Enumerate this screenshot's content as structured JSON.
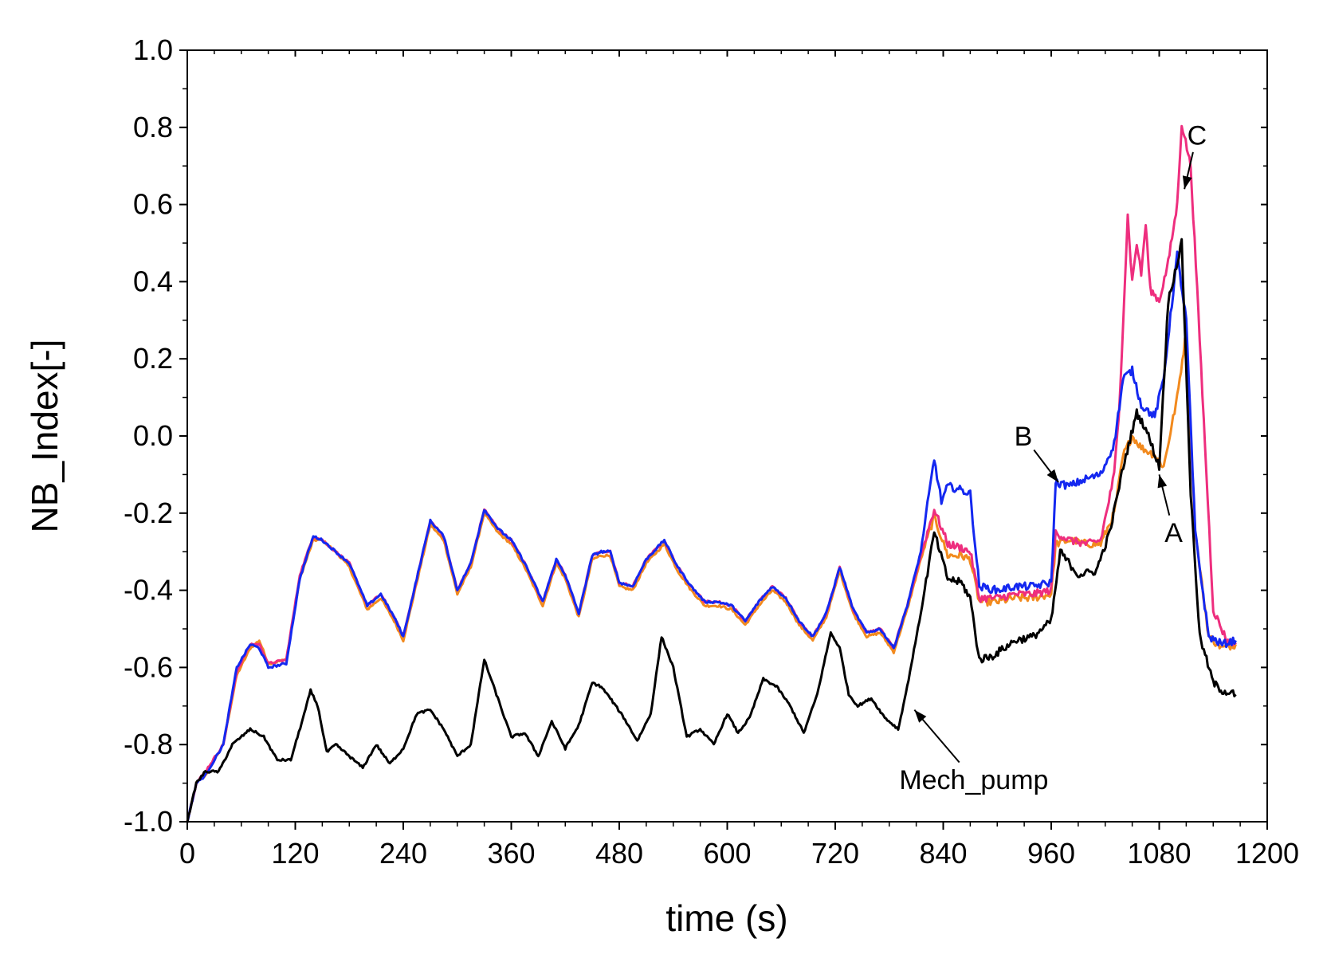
{
  "chart_data": {
    "type": "line",
    "title": "",
    "xlabel": "time (s)",
    "ylabel": "NB_Index[-]",
    "xlim": [
      0,
      1200
    ],
    "ylim": [
      -1.0,
      1.0
    ],
    "xticks": [
      0,
      120,
      240,
      360,
      480,
      600,
      720,
      840,
      960,
      1080,
      1200
    ],
    "xtick_labels": [
      "0",
      "120",
      "240",
      "360",
      "480",
      "600",
      "720",
      "840",
      "960",
      "1080",
      "1200"
    ],
    "yticks": [
      -1.0,
      -0.8,
      -0.6,
      -0.4,
      -0.2,
      0.0,
      0.2,
      0.4,
      0.6,
      0.8,
      1.0
    ],
    "ytick_labels": [
      "-1.0",
      "-0.8",
      "-0.6",
      "-0.4",
      "-0.2",
      "0.0",
      "0.2",
      "0.4",
      "0.6",
      "0.8",
      "1.0"
    ],
    "grid": false,
    "legend": "none",
    "series": [
      {
        "name": "A",
        "color": "#f28a1e",
        "x": [
          0,
          10,
          20,
          40,
          55,
          70,
          80,
          90,
          110,
          125,
          140,
          150,
          165,
          180,
          200,
          215,
          230,
          240,
          255,
          270,
          285,
          300,
          315,
          330,
          345,
          360,
          375,
          395,
          410,
          420,
          435,
          450,
          460,
          470,
          480,
          495,
          510,
          530,
          545,
          560,
          575,
          590,
          605,
          620,
          635,
          650,
          665,
          680,
          695,
          710,
          725,
          740,
          755,
          770,
          785,
          800,
          815,
          830,
          845,
          860,
          870,
          880,
          900,
          920,
          940,
          960,
          965,
          980,
          1000,
          1015,
          1030,
          1040,
          1050,
          1060,
          1075,
          1085,
          1100,
          1110,
          1120,
          1135,
          1150,
          1165
        ],
        "values": [
          -1.0,
          -0.9,
          -0.88,
          -0.8,
          -0.62,
          -0.55,
          -0.53,
          -0.59,
          -0.58,
          -0.37,
          -0.27,
          -0.27,
          -0.3,
          -0.34,
          -0.45,
          -0.42,
          -0.48,
          -0.53,
          -0.38,
          -0.23,
          -0.27,
          -0.41,
          -0.34,
          -0.2,
          -0.25,
          -0.28,
          -0.34,
          -0.44,
          -0.33,
          -0.37,
          -0.47,
          -0.32,
          -0.31,
          -0.31,
          -0.39,
          -0.4,
          -0.33,
          -0.28,
          -0.35,
          -0.4,
          -0.44,
          -0.44,
          -0.45,
          -0.49,
          -0.44,
          -0.4,
          -0.43,
          -0.49,
          -0.53,
          -0.47,
          -0.35,
          -0.46,
          -0.52,
          -0.51,
          -0.56,
          -0.45,
          -0.32,
          -0.21,
          -0.31,
          -0.31,
          -0.32,
          -0.43,
          -0.43,
          -0.42,
          -0.42,
          -0.41,
          -0.28,
          -0.27,
          -0.28,
          -0.28,
          -0.2,
          -0.05,
          0.0,
          -0.03,
          -0.05,
          -0.08,
          0.1,
          0.27,
          -0.25,
          -0.52,
          -0.55,
          -0.54
        ]
      },
      {
        "name": "C",
        "color": "#ee2e7e",
        "x": [
          0,
          10,
          20,
          40,
          55,
          70,
          80,
          90,
          110,
          125,
          140,
          150,
          165,
          180,
          200,
          215,
          230,
          240,
          255,
          270,
          285,
          300,
          315,
          330,
          345,
          360,
          375,
          395,
          410,
          420,
          435,
          450,
          460,
          470,
          480,
          495,
          510,
          530,
          545,
          560,
          575,
          590,
          605,
          620,
          635,
          650,
          665,
          680,
          695,
          710,
          725,
          740,
          755,
          770,
          785,
          800,
          815,
          830,
          845,
          860,
          870,
          880,
          900,
          920,
          940,
          960,
          965,
          980,
          1000,
          1015,
          1030,
          1035,
          1040,
          1045,
          1050,
          1055,
          1060,
          1065,
          1070,
          1080,
          1090,
          1100,
          1105,
          1115,
          1125,
          1140,
          1155,
          1165
        ],
        "values": [
          -1.0,
          -0.9,
          -0.87,
          -0.8,
          -0.61,
          -0.54,
          -0.54,
          -0.59,
          -0.58,
          -0.36,
          -0.26,
          -0.27,
          -0.3,
          -0.33,
          -0.44,
          -0.41,
          -0.47,
          -0.52,
          -0.37,
          -0.22,
          -0.26,
          -0.4,
          -0.33,
          -0.19,
          -0.24,
          -0.27,
          -0.33,
          -0.43,
          -0.32,
          -0.36,
          -0.46,
          -0.31,
          -0.3,
          -0.3,
          -0.38,
          -0.39,
          -0.32,
          -0.27,
          -0.34,
          -0.39,
          -0.43,
          -0.43,
          -0.44,
          -0.48,
          -0.43,
          -0.39,
          -0.42,
          -0.48,
          -0.52,
          -0.46,
          -0.34,
          -0.45,
          -0.51,
          -0.5,
          -0.55,
          -0.44,
          -0.31,
          -0.19,
          -0.28,
          -0.29,
          -0.3,
          -0.42,
          -0.42,
          -0.41,
          -0.41,
          -0.4,
          -0.25,
          -0.27,
          -0.28,
          -0.27,
          -0.1,
          0.05,
          0.3,
          0.57,
          0.4,
          0.5,
          0.42,
          0.55,
          0.38,
          0.35,
          0.45,
          0.6,
          0.81,
          0.7,
          0.25,
          -0.45,
          -0.53,
          -0.54
        ]
      },
      {
        "name": "B",
        "color": "#1428f0",
        "x": [
          0,
          10,
          20,
          40,
          55,
          70,
          80,
          90,
          110,
          125,
          140,
          150,
          165,
          180,
          200,
          215,
          230,
          240,
          255,
          270,
          285,
          300,
          315,
          330,
          345,
          360,
          375,
          395,
          410,
          420,
          435,
          450,
          460,
          470,
          480,
          495,
          510,
          530,
          545,
          560,
          575,
          590,
          605,
          620,
          635,
          650,
          665,
          680,
          695,
          710,
          725,
          740,
          755,
          770,
          785,
          800,
          815,
          830,
          838,
          845,
          860,
          870,
          880,
          900,
          920,
          940,
          960,
          965,
          980,
          1000,
          1015,
          1030,
          1040,
          1050,
          1060,
          1075,
          1085,
          1100,
          1110,
          1120,
          1135,
          1150,
          1165
        ],
        "values": [
          -1.0,
          -0.9,
          -0.88,
          -0.8,
          -0.6,
          -0.54,
          -0.55,
          -0.6,
          -0.59,
          -0.37,
          -0.26,
          -0.27,
          -0.3,
          -0.33,
          -0.44,
          -0.41,
          -0.47,
          -0.52,
          -0.37,
          -0.22,
          -0.26,
          -0.4,
          -0.33,
          -0.19,
          -0.24,
          -0.27,
          -0.33,
          -0.43,
          -0.32,
          -0.36,
          -0.46,
          -0.31,
          -0.3,
          -0.3,
          -0.38,
          -0.39,
          -0.32,
          -0.27,
          -0.34,
          -0.39,
          -0.43,
          -0.43,
          -0.44,
          -0.48,
          -0.43,
          -0.39,
          -0.42,
          -0.48,
          -0.52,
          -0.46,
          -0.34,
          -0.45,
          -0.51,
          -0.5,
          -0.55,
          -0.44,
          -0.3,
          -0.06,
          -0.17,
          -0.13,
          -0.14,
          -0.15,
          -0.39,
          -0.4,
          -0.39,
          -0.39,
          -0.38,
          -0.12,
          -0.13,
          -0.11,
          -0.1,
          -0.02,
          0.15,
          0.17,
          0.08,
          0.05,
          0.15,
          0.47,
          0.3,
          -0.25,
          -0.52,
          -0.54,
          -0.53
        ]
      },
      {
        "name": "Mech_pump",
        "color": "#000000",
        "x": [
          0,
          10,
          20,
          35,
          50,
          70,
          85,
          100,
          115,
          130,
          137,
          145,
          155,
          165,
          180,
          195,
          210,
          225,
          240,
          255,
          270,
          285,
          300,
          315,
          330,
          345,
          360,
          375,
          390,
          405,
          420,
          435,
          450,
          460,
          470,
          485,
          500,
          515,
          527,
          540,
          555,
          570,
          585,
          600,
          612,
          625,
          640,
          655,
          670,
          685,
          700,
          715,
          725,
          735,
          745,
          760,
          775,
          790,
          800,
          815,
          830,
          845,
          860,
          870,
          880,
          895,
          920,
          940,
          960,
          970,
          990,
          1010,
          1025,
          1040,
          1055,
          1065,
          1080,
          1090,
          1105,
          1115,
          1125,
          1140,
          1150,
          1165
        ],
        "values": [
          -1.0,
          -0.9,
          -0.87,
          -0.87,
          -0.8,
          -0.76,
          -0.78,
          -0.84,
          -0.84,
          -0.72,
          -0.66,
          -0.7,
          -0.82,
          -0.8,
          -0.83,
          -0.86,
          -0.8,
          -0.85,
          -0.81,
          -0.72,
          -0.71,
          -0.76,
          -0.83,
          -0.8,
          -0.58,
          -0.68,
          -0.78,
          -0.77,
          -0.83,
          -0.74,
          -0.81,
          -0.75,
          -0.64,
          -0.65,
          -0.68,
          -0.73,
          -0.79,
          -0.72,
          -0.52,
          -0.6,
          -0.78,
          -0.76,
          -0.8,
          -0.72,
          -0.77,
          -0.73,
          -0.63,
          -0.65,
          -0.7,
          -0.77,
          -0.67,
          -0.51,
          -0.55,
          -0.67,
          -0.7,
          -0.68,
          -0.73,
          -0.76,
          -0.65,
          -0.46,
          -0.25,
          -0.37,
          -0.38,
          -0.42,
          -0.58,
          -0.57,
          -0.53,
          -0.52,
          -0.48,
          -0.3,
          -0.36,
          -0.35,
          -0.25,
          -0.08,
          0.06,
          0.02,
          -0.08,
          0.35,
          0.5,
          -0.15,
          -0.52,
          -0.64,
          -0.66,
          -0.67
        ]
      }
    ],
    "annotations": [
      {
        "text": "C",
        "label_x": 1122,
        "label_y": 0.78,
        "point_x": 1108,
        "point_y": 0.64
      },
      {
        "text": "B",
        "label_x": 929,
        "label_y": 0.0,
        "point_x": 968,
        "point_y": -0.12
      },
      {
        "text": "A",
        "label_x": 1096,
        "label_y": -0.25,
        "point_x": 1080,
        "point_y": -0.1
      },
      {
        "text": "Mech_pump",
        "label_x": 874,
        "label_y": -0.89,
        "point_x": 808,
        "point_y": -0.71
      }
    ]
  }
}
